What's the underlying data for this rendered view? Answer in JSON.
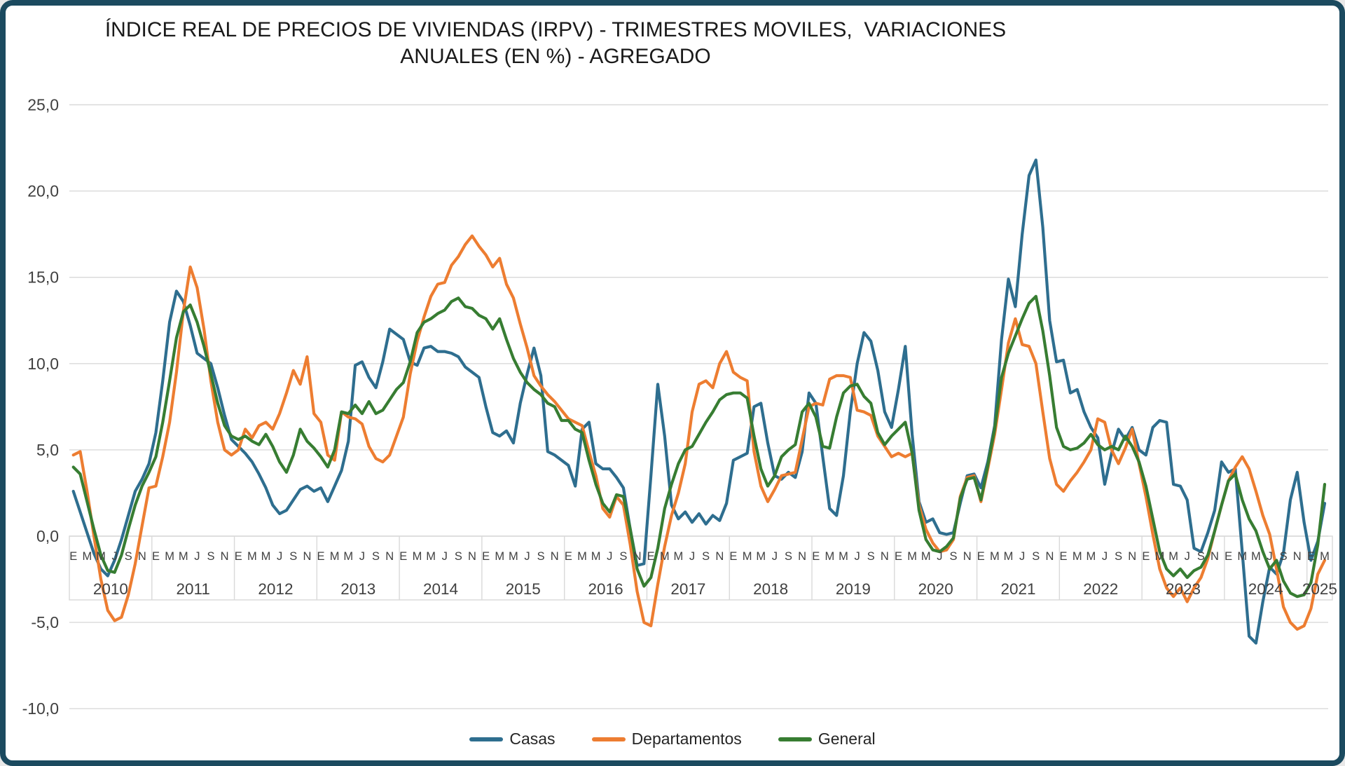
{
  "title": {
    "line1": "ÍNDICE REAL DE PRECIOS DE VIVIENDAS (IRPV) - TRIMESTRES MOVILES,  VARIACIONES",
    "line2": "ANUALES (EN %) - AGREGADO"
  },
  "colors": {
    "frame_border": "#1b4a5f",
    "gridline": "#d9d9d9",
    "axis_text": "#404040",
    "casas": "#2e6e8f",
    "departamentos": "#ed7d31",
    "general": "#377d32"
  },
  "legend": [
    {
      "label": "Casas",
      "color": "#2e6e8f"
    },
    {
      "label": "Departamentos",
      "color": "#ed7d31"
    },
    {
      "label": "General",
      "color": "#377d32"
    }
  ],
  "chart_data": {
    "type": "line",
    "title": "ÍNDICE REAL DE PRECIOS DE VIVIENDAS (IRPV) - TRIMESTRES MOVILES, VARIACIONES ANUALES (EN %) - AGREGADO",
    "frequency": "monthly",
    "x_start": "2010-01",
    "x_end": "2025-03",
    "years": [
      "2010",
      "2011",
      "2012",
      "2013",
      "2014",
      "2015",
      "2016",
      "2017",
      "2018",
      "2019",
      "2020",
      "2021",
      "2022",
      "2023",
      "2024",
      "2025"
    ],
    "month_tick_letters": [
      "E",
      "M",
      "M",
      "J",
      "S",
      "N"
    ],
    "y_ticks": [
      25,
      20,
      15,
      10,
      5,
      0,
      -5,
      -10
    ],
    "y_tick_labels": [
      "25,0",
      "20,0",
      "15,0",
      "10,0",
      "5,0",
      "0,0",
      "-5,0",
      "-10,0"
    ],
    "ylim": [
      -10,
      25
    ],
    "grid": true,
    "legend_position": "bottom",
    "series": [
      {
        "name": "Casas",
        "color": "#2e6e8f",
        "values": [
          2.6,
          1.4,
          0.2,
          -1.0,
          -1.9,
          -2.3,
          -1.4,
          -0.2,
          1.2,
          2.6,
          3.3,
          4.2,
          6.0,
          9.0,
          12.4,
          14.2,
          13.6,
          12.2,
          10.6,
          10.3,
          10.0,
          8.6,
          7.0,
          5.6,
          5.2,
          4.8,
          4.3,
          3.6,
          2.8,
          1.8,
          1.3,
          1.5,
          2.1,
          2.7,
          2.9,
          2.6,
          2.8,
          2.0,
          2.9,
          3.8,
          5.5,
          9.9,
          10.1,
          9.2,
          8.6,
          10.1,
          12.0,
          11.7,
          11.4,
          10.1,
          9.9,
          10.9,
          11.0,
          10.7,
          10.7,
          10.6,
          10.4,
          9.8,
          9.5,
          9.2,
          7.5,
          6.0,
          5.8,
          6.1,
          5.4,
          7.7,
          9.4,
          10.9,
          9.3,
          4.9,
          4.7,
          4.4,
          4.1,
          2.9,
          6.2,
          6.6,
          4.2,
          3.9,
          3.9,
          3.4,
          2.8,
          0.4,
          -1.7,
          -1.6,
          3.5,
          8.8,
          5.8,
          1.8,
          1.0,
          1.4,
          0.8,
          1.3,
          0.7,
          1.2,
          0.9,
          1.9,
          4.4,
          4.6,
          4.8,
          7.5,
          7.7,
          5.4,
          3.5,
          3.3,
          3.7,
          3.4,
          4.9,
          8.3,
          7.7,
          4.6,
          1.6,
          1.2,
          3.5,
          7.2,
          10.0,
          11.8,
          11.3,
          9.6,
          7.2,
          6.3,
          8.5,
          11.0,
          5.9,
          2.0,
          0.8,
          1.0,
          0.2,
          0.1,
          0.2,
          1.9,
          3.5,
          3.6,
          2.8,
          4.3,
          6.4,
          11.4,
          14.9,
          13.3,
          17.5,
          20.9,
          21.8,
          17.9,
          12.5,
          10.1,
          10.2,
          8.3,
          8.5,
          7.2,
          6.3,
          5.7,
          3.0,
          4.8,
          6.2,
          5.6,
          6.3,
          5.0,
          4.7,
          6.3,
          6.7,
          6.6,
          3.0,
          2.9,
          2.1,
          -0.7,
          -0.9,
          0.2,
          1.5,
          4.3,
          3.7,
          3.9,
          -0.9,
          -5.8,
          -6.2,
          -3.8,
          -1.8,
          -2.2,
          -1.0,
          2.1,
          3.7,
          0.8,
          -1.4,
          -0.3,
          1.9
        ]
      },
      {
        "name": "Departamentos",
        "color": "#ed7d31",
        "values": [
          4.7,
          4.9,
          2.6,
          0.0,
          -2.5,
          -4.3,
          -4.9,
          -4.7,
          -3.4,
          -1.6,
          0.6,
          2.8,
          2.9,
          4.6,
          6.6,
          9.5,
          13.0,
          15.6,
          14.4,
          12.0,
          9.0,
          6.6,
          5.0,
          4.7,
          5.0,
          6.2,
          5.7,
          6.4,
          6.6,
          6.2,
          7.1,
          8.3,
          9.6,
          8.8,
          10.4,
          7.1,
          6.6,
          4.7,
          4.4,
          7.2,
          6.9,
          6.8,
          6.5,
          5.2,
          4.5,
          4.3,
          4.7,
          5.8,
          6.9,
          9.4,
          11.3,
          12.7,
          13.9,
          14.6,
          14.7,
          15.7,
          16.2,
          16.9,
          17.4,
          16.8,
          16.3,
          15.6,
          16.1,
          14.6,
          13.8,
          12.3,
          10.9,
          9.3,
          8.7,
          8.2,
          7.8,
          7.3,
          6.8,
          6.6,
          6.4,
          4.9,
          3.5,
          1.6,
          1.1,
          2.3,
          1.8,
          -0.5,
          -3.2,
          -5.0,
          -5.2,
          -2.8,
          -0.6,
          1.2,
          2.5,
          4.2,
          7.2,
          8.8,
          9.0,
          8.6,
          10.0,
          10.7,
          9.5,
          9.2,
          9.0,
          4.9,
          2.9,
          2.0,
          2.7,
          3.5,
          3.6,
          3.7,
          5.6,
          7.5,
          7.7,
          7.6,
          9.1,
          9.3,
          9.3,
          9.2,
          7.3,
          7.2,
          7.0,
          5.8,
          5.2,
          4.6,
          4.8,
          4.6,
          4.8,
          1.8,
          0.4,
          -0.4,
          -0.9,
          -0.8,
          -0.2,
          2.3,
          3.4,
          3.5,
          2.0,
          3.9,
          5.9,
          8.5,
          11.2,
          12.6,
          11.1,
          11.0,
          10.0,
          7.2,
          4.5,
          3.0,
          2.6,
          3.2,
          3.7,
          4.3,
          5.0,
          6.8,
          6.6,
          5.0,
          4.2,
          5.1,
          6.2,
          4.2,
          2.3,
          0.1,
          -1.9,
          -3.0,
          -3.5,
          -3.0,
          -3.8,
          -3.0,
          -2.4,
          -1.3,
          0.3,
          1.8,
          3.2,
          4.0,
          4.6,
          3.9,
          2.6,
          1.2,
          0.1,
          -1.9,
          -4.1,
          -5.0,
          -5.4,
          -5.2,
          -4.2,
          -2.2,
          -1.4
        ]
      },
      {
        "name": "General",
        "color": "#377d32",
        "values": [
          4.0,
          3.6,
          2.0,
          0.4,
          -1.1,
          -2.0,
          -2.1,
          -1.1,
          0.4,
          1.8,
          2.9,
          3.7,
          4.6,
          6.6,
          9.0,
          11.5,
          13.0,
          13.4,
          12.4,
          11.0,
          9.4,
          7.7,
          6.4,
          5.8,
          5.6,
          5.8,
          5.5,
          5.3,
          5.9,
          5.2,
          4.3,
          3.7,
          4.7,
          6.2,
          5.5,
          5.1,
          4.6,
          4.0,
          5.0,
          7.2,
          7.1,
          7.6,
          7.1,
          7.8,
          7.1,
          7.3,
          7.9,
          8.5,
          8.9,
          10.1,
          11.8,
          12.4,
          12.6,
          12.9,
          13.1,
          13.6,
          13.8,
          13.3,
          13.2,
          12.8,
          12.6,
          12.0,
          12.6,
          11.4,
          10.3,
          9.5,
          8.9,
          8.5,
          8.2,
          7.7,
          7.5,
          6.7,
          6.7,
          6.2,
          6.0,
          4.4,
          3.0,
          1.9,
          1.4,
          2.4,
          2.3,
          0.4,
          -1.9,
          -2.9,
          -2.4,
          -0.7,
          1.6,
          3.0,
          4.2,
          5.0,
          5.2,
          5.9,
          6.6,
          7.2,
          7.9,
          8.2,
          8.3,
          8.3,
          8.0,
          5.8,
          3.9,
          2.9,
          3.5,
          4.6,
          5.0,
          5.3,
          7.2,
          7.7,
          6.9,
          5.2,
          5.1,
          6.9,
          8.3,
          8.7,
          8.8,
          8.1,
          7.7,
          6.0,
          5.3,
          5.8,
          6.2,
          6.6,
          4.8,
          1.5,
          -0.2,
          -0.8,
          -0.9,
          -0.6,
          -0.1,
          2.2,
          3.3,
          3.4,
          2.1,
          4.1,
          6.2,
          9.2,
          10.6,
          11.6,
          12.6,
          13.5,
          13.9,
          11.9,
          9.3,
          6.3,
          5.2,
          5.0,
          5.1,
          5.4,
          5.9,
          5.3,
          5.0,
          5.2,
          5.0,
          5.8,
          5.2,
          4.3,
          2.9,
          1.0,
          -0.9,
          -1.9,
          -2.3,
          -1.9,
          -2.4,
          -2.0,
          -1.8,
          -1.1,
          0.3,
          1.8,
          3.2,
          3.6,
          2.1,
          1.0,
          0.3,
          -0.9,
          -1.9,
          -1.4,
          -2.6,
          -3.3,
          -3.5,
          -3.4,
          -2.7,
          -0.5,
          3.0
        ]
      }
    ]
  }
}
